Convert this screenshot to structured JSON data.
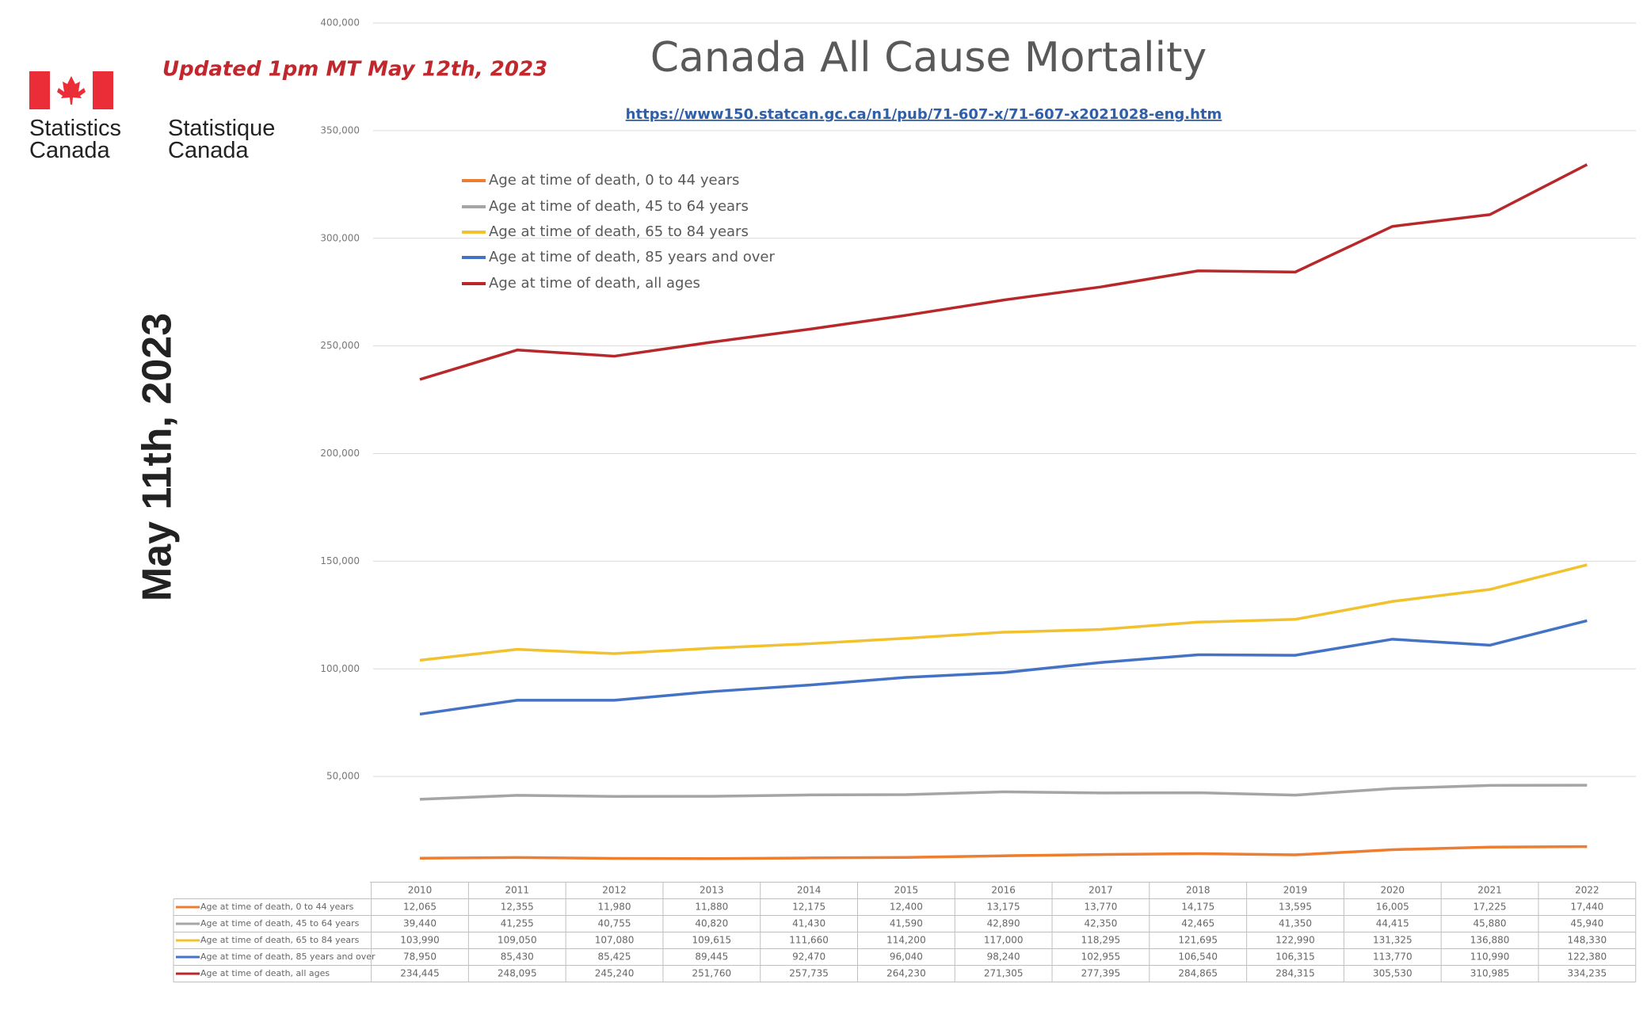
{
  "chart_data": {
    "type": "line",
    "title": "Canada All Cause Mortality",
    "source": "https://www150.statcan.gc.ca/n1/pub/71-607-x/71-607-x2021028-eng.htm",
    "annotations": [
      "Updated 1pm MT May 12th, 2023",
      "May 11th, 2023"
    ],
    "logo_text": [
      "Statistics Canada",
      "Statistique Canada"
    ],
    "categories": [
      "2010",
      "2011",
      "2012",
      "2013",
      "2014",
      "2015",
      "2016",
      "2017",
      "2018",
      "2019",
      "2020",
      "2021",
      "2022"
    ],
    "ylim": [
      0,
      400000
    ],
    "yticks": [
      {
        "value": 50000,
        "label": "50,000"
      },
      {
        "value": 100000,
        "label": "100,000"
      },
      {
        "value": 150000,
        "label": "150,000"
      },
      {
        "value": 200000,
        "label": "200,000"
      },
      {
        "value": 250000,
        "label": "250,000"
      },
      {
        "value": 300000,
        "label": "300,000"
      },
      {
        "value": 350000,
        "label": "350,000"
      },
      {
        "value": 400000,
        "label": "400,000"
      }
    ],
    "grid": true,
    "series": [
      {
        "name": "Age at time of death, 0 to 44 years",
        "color": "#ed7d31",
        "values": [
          12065,
          12355,
          11980,
          11880,
          12175,
          12400,
          13175,
          13770,
          14175,
          13595,
          16005,
          17225,
          17440
        ],
        "value_labels": [
          "12,065",
          "12,355",
          "11,980",
          "11,880",
          "12,175",
          "12,400",
          "13,175",
          "13,770",
          "14,175",
          "13,595",
          "16,005",
          "17,225",
          "17,440"
        ]
      },
      {
        "name": "Age at time of death, 45 to 64 years",
        "color": "#a5a5a5",
        "values": [
          39440,
          41255,
          40755,
          40820,
          41430,
          41590,
          42890,
          42350,
          42465,
          41350,
          44415,
          45880,
          45940
        ],
        "value_labels": [
          "39,440",
          "41,255",
          "40,755",
          "40,820",
          "41,430",
          "41,590",
          "42,890",
          "42,350",
          "42,465",
          "41,350",
          "44,415",
          "45,880",
          "45,940"
        ]
      },
      {
        "name": "Age at time of death, 65 to 84 years",
        "color": "#f2c12e",
        "values": [
          103990,
          109050,
          107080,
          109615,
          111660,
          114200,
          117000,
          118295,
          121695,
          122990,
          131325,
          136880,
          148330
        ],
        "value_labels": [
          "103,990",
          "109,050",
          "107,080",
          "109,615",
          "111,660",
          "114,200",
          "117,000",
          "118,295",
          "121,695",
          "122,990",
          "131,325",
          "136,880",
          "148,330"
        ]
      },
      {
        "name": "Age at time of death, 85 years and over",
        "color": "#4472c4",
        "values": [
          78950,
          85430,
          85425,
          89445,
          92470,
          96040,
          98240,
          102955,
          106540,
          106315,
          113770,
          110990,
          122380
        ],
        "value_labels": [
          "78,950",
          "85,430",
          "85,425",
          "89,445",
          "92,470",
          "96,040",
          "98,240",
          "102,955",
          "106,540",
          "106,315",
          "113,770",
          "110,990",
          "122,380"
        ]
      },
      {
        "name": "Age at time of death, all ages",
        "color": "#b8282a",
        "values": [
          234445,
          248095,
          245240,
          251760,
          257735,
          264230,
          271305,
          277395,
          284865,
          284315,
          305530,
          310985,
          334235
        ],
        "value_labels": [
          "234,445",
          "248,095",
          "245,240",
          "251,760",
          "257,735",
          "264,230",
          "271,305",
          "277,395",
          "284,865",
          "284,315",
          "305,530",
          "310,985",
          "334,235"
        ]
      }
    ]
  }
}
